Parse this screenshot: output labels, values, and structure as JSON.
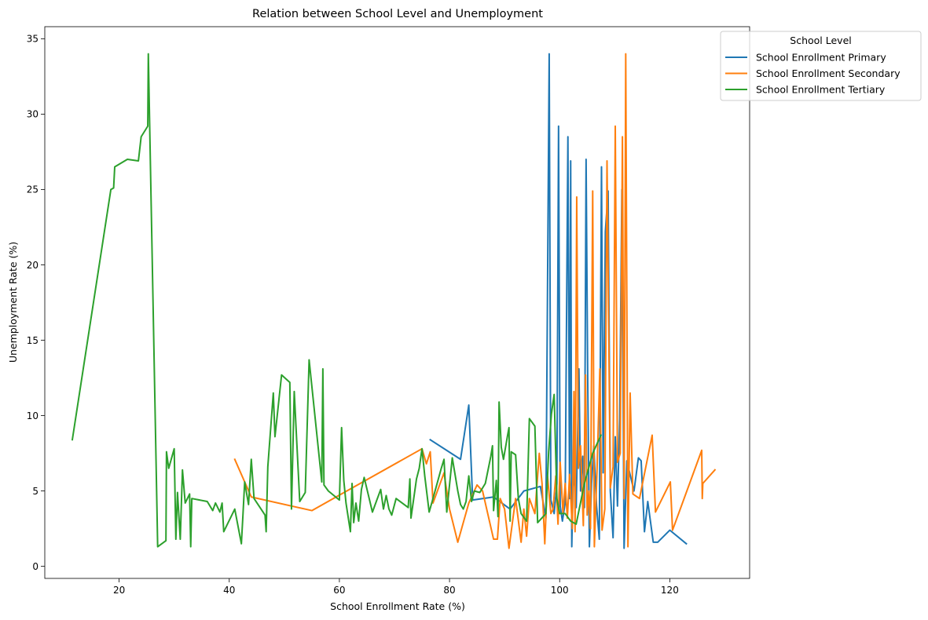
{
  "chart_data": {
    "type": "line",
    "title": "Relation between School Level and Unemployment",
    "xlabel": "School Enrollment Rate (%)",
    "ylabel": "Unemployment Rate (%)",
    "xlim": [
      6.5,
      134.5
    ],
    "ylim": [
      -0.8,
      35.8
    ],
    "xticks": [
      20,
      40,
      60,
      80,
      100,
      120
    ],
    "yticks": [
      0,
      5,
      10,
      15,
      20,
      25,
      30,
      35
    ],
    "grid": false,
    "legend": {
      "title": "School Level",
      "position": "top-right"
    },
    "series": [
      {
        "name": "School Enrollment Primary",
        "color": "#1f77b4",
        "points": [
          [
            76.5,
            8.4
          ],
          [
            82.0,
            7.1
          ],
          [
            83.5,
            10.7
          ],
          [
            84.2,
            4.4
          ],
          [
            88.0,
            4.6
          ],
          [
            91.0,
            3.8
          ],
          [
            93.5,
            5.0
          ],
          [
            96.5,
            5.3
          ],
          [
            97.5,
            3.2
          ],
          [
            98.1,
            34.0
          ],
          [
            98.4,
            4.4
          ],
          [
            99.0,
            3.5
          ],
          [
            99.5,
            5.5
          ],
          [
            99.8,
            29.2
          ],
          [
            100.1,
            4.0
          ],
          [
            100.5,
            3.0
          ],
          [
            101.0,
            4.2
          ],
          [
            101.5,
            28.5
          ],
          [
            101.8,
            4.5
          ],
          [
            102.0,
            26.9
          ],
          [
            102.2,
            1.3
          ],
          [
            102.5,
            6.6
          ],
          [
            103.0,
            3.9
          ],
          [
            103.5,
            13.1
          ],
          [
            103.8,
            5.0
          ],
          [
            104.2,
            7.3
          ],
          [
            104.5,
            3.9
          ],
          [
            104.8,
            27.0
          ],
          [
            105.1,
            12.2
          ],
          [
            105.4,
            1.3
          ],
          [
            105.8,
            5.5
          ],
          [
            106.2,
            8.0
          ],
          [
            106.7,
            4.0
          ],
          [
            107.2,
            1.8
          ],
          [
            107.6,
            26.5
          ],
          [
            107.9,
            6.2
          ],
          [
            108.3,
            22.2
          ],
          [
            108.8,
            24.9
          ],
          [
            109.2,
            5.0
          ],
          [
            109.7,
            1.9
          ],
          [
            110.1,
            8.6
          ],
          [
            110.5,
            4.0
          ],
          [
            110.9,
            9.8
          ],
          [
            111.3,
            25.0
          ],
          [
            111.7,
            1.2
          ],
          [
            112.2,
            7.0
          ],
          [
            113.5,
            5.0
          ],
          [
            114.3,
            7.2
          ],
          [
            114.8,
            7.0
          ],
          [
            115.4,
            2.3
          ],
          [
            116.0,
            4.3
          ],
          [
            117.0,
            1.6
          ],
          [
            117.8,
            1.6
          ],
          [
            120.0,
            2.4
          ],
          [
            123.0,
            1.5
          ]
        ]
      },
      {
        "name": "School Enrollment Secondary",
        "color": "#ff7f0e",
        "points": [
          [
            41.0,
            7.1
          ],
          [
            44.0,
            4.6
          ],
          [
            55.0,
            3.7
          ],
          [
            75.0,
            7.8
          ],
          [
            75.8,
            6.8
          ],
          [
            76.5,
            7.6
          ],
          [
            77.0,
            4.2
          ],
          [
            79.0,
            6.2
          ],
          [
            80.0,
            3.8
          ],
          [
            81.5,
            1.6
          ],
          [
            83.5,
            4.2
          ],
          [
            85.0,
            5.4
          ],
          [
            86.0,
            5.0
          ],
          [
            88.0,
            1.8
          ],
          [
            88.7,
            1.8
          ],
          [
            89.2,
            4.5
          ],
          [
            90.0,
            3.8
          ],
          [
            90.8,
            1.2
          ],
          [
            92.0,
            4.5
          ],
          [
            93.0,
            1.6
          ],
          [
            93.5,
            3.8
          ],
          [
            94.0,
            2.0
          ],
          [
            94.5,
            4.5
          ],
          [
            95.5,
            3.5
          ],
          [
            96.3,
            7.5
          ],
          [
            96.8,
            5.5
          ],
          [
            97.3,
            1.5
          ],
          [
            97.8,
            6.0
          ],
          [
            98.4,
            3.5
          ],
          [
            98.8,
            3.8
          ],
          [
            99.3,
            6.0
          ],
          [
            99.7,
            2.8
          ],
          [
            100.1,
            6.9
          ],
          [
            100.6,
            3.5
          ],
          [
            101.0,
            5.5
          ],
          [
            101.4,
            3.2
          ],
          [
            101.8,
            6.1
          ],
          [
            102.3,
            2.5
          ],
          [
            102.6,
            11.6
          ],
          [
            102.8,
            2.3
          ],
          [
            103.1,
            24.5
          ],
          [
            103.4,
            6.5
          ],
          [
            103.8,
            8.0
          ],
          [
            104.3,
            2.7
          ],
          [
            104.7,
            12.7
          ],
          [
            105.0,
            3.4
          ],
          [
            105.3,
            5.0
          ],
          [
            105.6,
            2.5
          ],
          [
            106.0,
            24.9
          ],
          [
            106.3,
            1.3
          ],
          [
            106.8,
            6.5
          ],
          [
            107.3,
            13.1
          ],
          [
            107.7,
            2.4
          ],
          [
            108.2,
            3.8
          ],
          [
            108.6,
            26.9
          ],
          [
            109.2,
            5.2
          ],
          [
            109.7,
            6.6
          ],
          [
            110.1,
            29.2
          ],
          [
            110.5,
            6.9
          ],
          [
            111.0,
            7.5
          ],
          [
            111.4,
            28.5
          ],
          [
            111.7,
            4.5
          ],
          [
            112.0,
            34.0
          ],
          [
            112.4,
            1.3
          ],
          [
            112.8,
            11.5
          ],
          [
            113.3,
            4.8
          ],
          [
            114.5,
            4.5
          ],
          [
            116.8,
            8.7
          ],
          [
            117.4,
            3.6
          ],
          [
            120.1,
            5.6
          ],
          [
            120.5,
            2.4
          ],
          [
            125.8,
            7.7
          ],
          [
            125.9,
            4.5
          ],
          [
            126.0,
            5.5
          ],
          [
            128.2,
            6.4
          ]
        ]
      },
      {
        "name": "School Enrollment Tertiary",
        "color": "#2ca02c",
        "points": [
          [
            11.5,
            8.4
          ],
          [
            18.5,
            25.0
          ],
          [
            19.0,
            25.1
          ],
          [
            19.2,
            26.5
          ],
          [
            21.5,
            27.0
          ],
          [
            23.5,
            26.9
          ],
          [
            24.0,
            28.5
          ],
          [
            25.2,
            29.2
          ],
          [
            25.3,
            34.0
          ],
          [
            27.0,
            1.3
          ],
          [
            28.5,
            1.7
          ],
          [
            28.6,
            7.6
          ],
          [
            29.0,
            6.5
          ],
          [
            30.0,
            7.8
          ],
          [
            30.3,
            1.8
          ],
          [
            30.6,
            4.9
          ],
          [
            31.1,
            1.8
          ],
          [
            31.5,
            6.4
          ],
          [
            32.0,
            4.2
          ],
          [
            32.8,
            4.8
          ],
          [
            33.0,
            1.3
          ],
          [
            33.2,
            4.5
          ],
          [
            36.0,
            4.3
          ],
          [
            37.0,
            3.7
          ],
          [
            37.5,
            4.2
          ],
          [
            38.3,
            3.6
          ],
          [
            38.7,
            4.2
          ],
          [
            39.0,
            2.3
          ],
          [
            41.0,
            3.8
          ],
          [
            42.2,
            1.5
          ],
          [
            42.5,
            3.5
          ],
          [
            42.8,
            5.6
          ],
          [
            43.5,
            4.1
          ],
          [
            44.0,
            7.1
          ],
          [
            44.5,
            4.5
          ],
          [
            46.5,
            3.4
          ],
          [
            46.7,
            2.3
          ],
          [
            47.0,
            6.6
          ],
          [
            48.0,
            11.5
          ],
          [
            48.3,
            8.6
          ],
          [
            49.5,
            12.7
          ],
          [
            51.0,
            12.2
          ],
          [
            51.3,
            3.8
          ],
          [
            51.8,
            11.6
          ],
          [
            52.8,
            4.3
          ],
          [
            53.8,
            4.9
          ],
          [
            54.5,
            13.7
          ],
          [
            56.8,
            5.6
          ],
          [
            57.0,
            13.1
          ],
          [
            57.2,
            5.4
          ],
          [
            58.0,
            5.0
          ],
          [
            60.0,
            4.4
          ],
          [
            60.4,
            9.2
          ],
          [
            60.8,
            5.7
          ],
          [
            61.2,
            4.2
          ],
          [
            62.0,
            2.3
          ],
          [
            62.3,
            5.5
          ],
          [
            62.6,
            2.9
          ],
          [
            63.0,
            4.2
          ],
          [
            63.5,
            3.0
          ],
          [
            64.0,
            5.1
          ],
          [
            64.5,
            5.9
          ],
          [
            66.0,
            3.6
          ],
          [
            67.5,
            5.1
          ],
          [
            68.0,
            3.8
          ],
          [
            68.5,
            4.7
          ],
          [
            69.0,
            3.8
          ],
          [
            69.5,
            3.4
          ],
          [
            70.3,
            4.5
          ],
          [
            72.5,
            3.9
          ],
          [
            72.8,
            5.8
          ],
          [
            73.0,
            3.2
          ],
          [
            74.0,
            5.8
          ],
          [
            74.5,
            6.5
          ],
          [
            75.0,
            7.8
          ],
          [
            75.5,
            6.0
          ],
          [
            76.3,
            3.6
          ],
          [
            77.0,
            4.5
          ],
          [
            78.5,
            6.5
          ],
          [
            79.0,
            7.1
          ],
          [
            79.5,
            3.6
          ],
          [
            80.5,
            7.2
          ],
          [
            81.5,
            5.0
          ],
          [
            82.0,
            4.1
          ],
          [
            82.5,
            3.8
          ],
          [
            83.0,
            4.3
          ],
          [
            83.5,
            6.0
          ],
          [
            84.0,
            4.3
          ],
          [
            84.5,
            5.0
          ],
          [
            85.5,
            4.9
          ],
          [
            86.5,
            5.5
          ],
          [
            87.5,
            7.3
          ],
          [
            87.8,
            8.0
          ],
          [
            88.0,
            3.7
          ],
          [
            88.5,
            5.7
          ],
          [
            88.8,
            3.3
          ],
          [
            89.0,
            10.9
          ],
          [
            89.4,
            7.9
          ],
          [
            89.8,
            7.1
          ],
          [
            90.5,
            8.6
          ],
          [
            90.8,
            9.2
          ],
          [
            91.0,
            3.0
          ],
          [
            91.2,
            7.6
          ],
          [
            92.0,
            7.4
          ],
          [
            92.5,
            4.5
          ],
          [
            93.0,
            3.5
          ],
          [
            94.0,
            3.0
          ],
          [
            94.5,
            9.8
          ],
          [
            95.5,
            9.3
          ],
          [
            96.0,
            2.9
          ],
          [
            97.5,
            3.5
          ],
          [
            98.0,
            7.6
          ],
          [
            98.5,
            10.1
          ],
          [
            99.0,
            11.4
          ],
          [
            99.5,
            4.5
          ],
          [
            100.0,
            3.5
          ],
          [
            101.0,
            3.5
          ],
          [
            102.0,
            3.0
          ],
          [
            103.0,
            2.8
          ],
          [
            104.5,
            5.5
          ],
          [
            106.0,
            7.5
          ],
          [
            107.5,
            8.7
          ]
        ]
      }
    ]
  }
}
